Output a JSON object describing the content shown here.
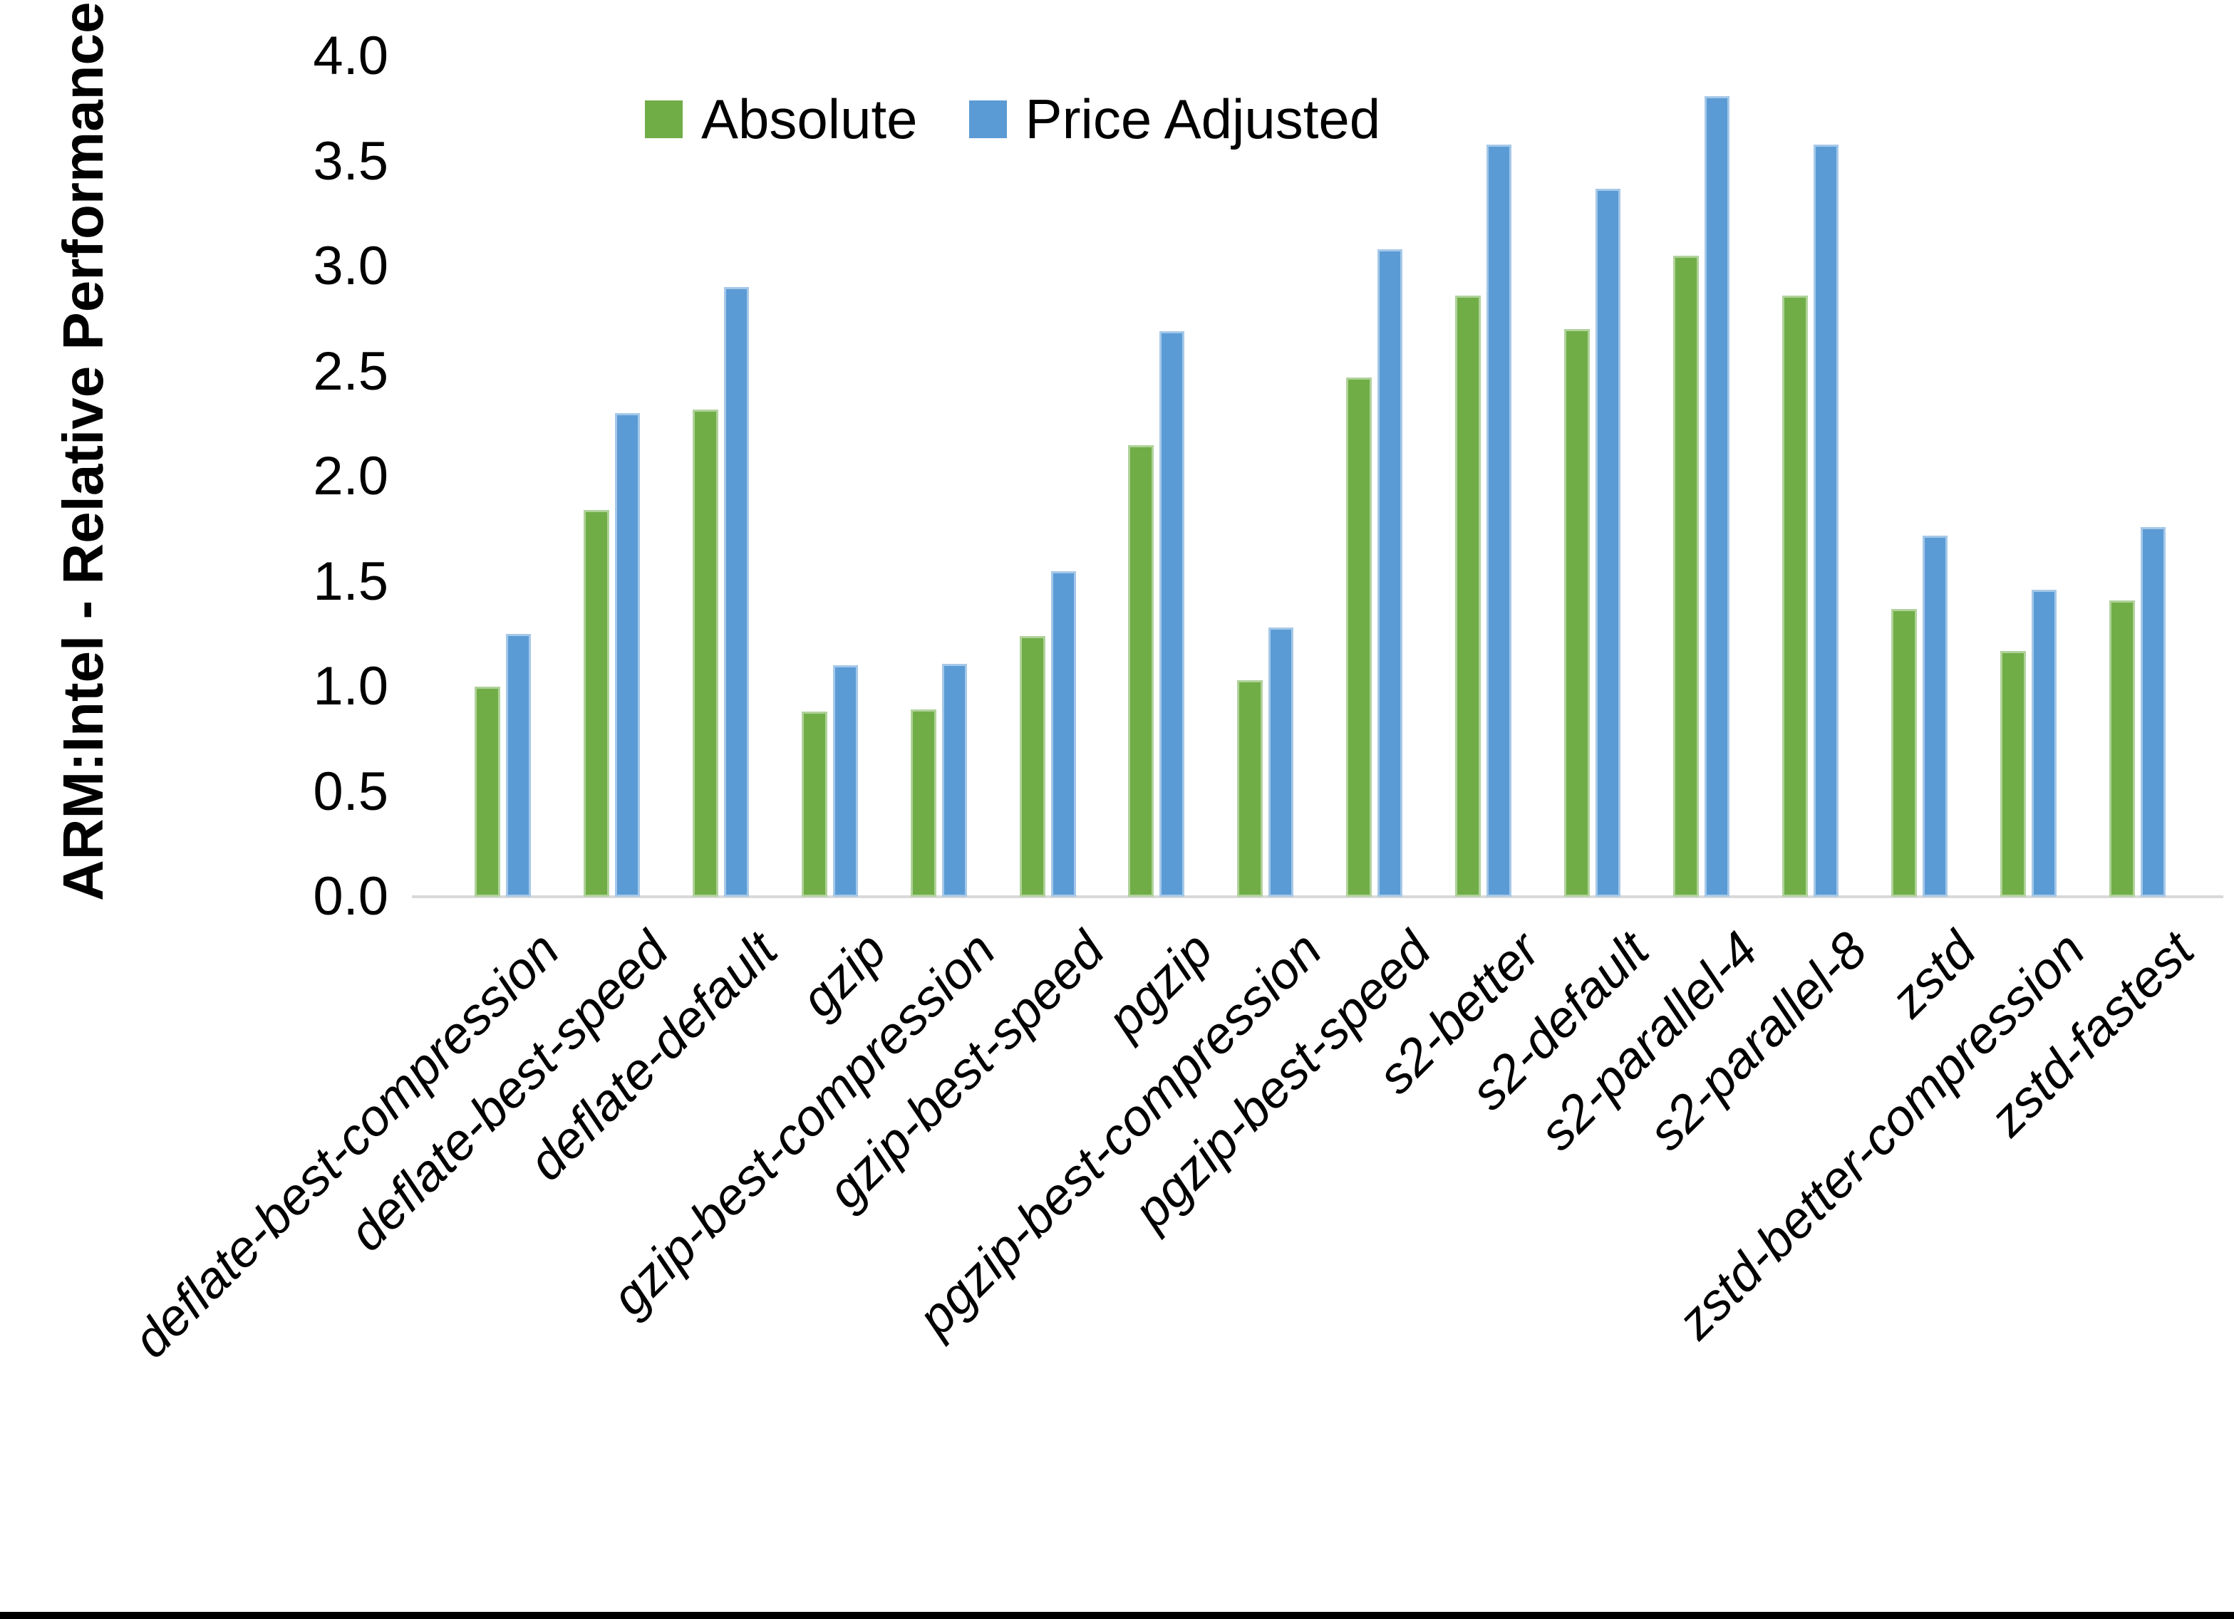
{
  "chart_data": {
    "type": "bar",
    "title": "",
    "xlabel": "",
    "ylabel": "ARM:Intel - Relative Performance",
    "ylim": [
      0.0,
      4.0
    ],
    "ytick_step": 0.5,
    "ytick_labels": [
      "0.0",
      "0.5",
      "1.0",
      "1.5",
      "2.0",
      "2.5",
      "3.0",
      "3.5",
      "4.0"
    ],
    "grid": false,
    "legend_position": "top-center",
    "categories": [
      "deflate-best-compression",
      "deflate-best-speed",
      "deflate-default",
      "gzip",
      "gzip-best-compression",
      "gzip-best-speed",
      "pgzip",
      "pgzip-best-compression",
      "pgzip-best-speed",
      "s2-better",
      "s2-default",
      "s2-parallel-4",
      "s2-parallel-8",
      "zstd",
      "zstd-better-compression",
      "zstd-fastest"
    ],
    "series": [
      {
        "name": "Absolute",
        "color": "#70AD47",
        "values": [
          1.0,
          1.84,
          2.32,
          0.88,
          0.89,
          1.24,
          2.15,
          1.03,
          2.47,
          2.86,
          2.7,
          3.05,
          2.86,
          1.37,
          1.17,
          1.41
        ]
      },
      {
        "name": "Price Adjusted",
        "color": "#5B9BD5",
        "values": [
          1.25,
          2.3,
          2.9,
          1.1,
          1.11,
          1.55,
          2.69,
          1.28,
          3.08,
          3.58,
          3.37,
          3.81,
          3.58,
          1.72,
          1.46,
          1.76
        ]
      }
    ],
    "colors": {
      "axis_line": "#d9d9d9",
      "background": "#ffffff",
      "bottom_border": "#000000"
    }
  }
}
